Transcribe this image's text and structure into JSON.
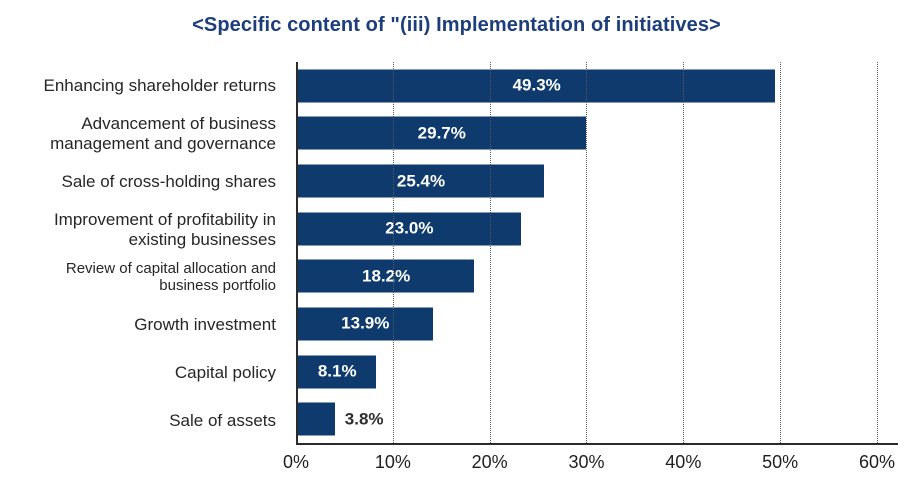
{
  "chart_data": {
    "type": "bar",
    "orientation": "horizontal",
    "title": "<Specific content of \"(iii) Implementation of initiatives>",
    "categories": [
      "Enhancing shareholder returns",
      "Advancement of business\nmanagement and governance",
      "Sale of cross-holding shares",
      "Improvement of profitability in\nexisting businesses",
      "Review of capital allocation and\nbusiness portfolio",
      "Growth investment",
      "Capital policy",
      "Sale of assets"
    ],
    "values": [
      49.3,
      29.7,
      25.4,
      23.0,
      18.2,
      13.9,
      8.1,
      3.8
    ],
    "value_labels": [
      "49.3%",
      "29.7%",
      "25.4%",
      "23.0%",
      "18.2%",
      "13.9%",
      "8.1%",
      "3.8%"
    ],
    "x_ticks": [
      "0%",
      "10%",
      "20%",
      "30%",
      "40%",
      "50%",
      "60%"
    ],
    "xlim": [
      0,
      60
    ],
    "grid": "vertical-dotted",
    "legend": "none",
    "colors": {
      "bar": "#0e3a6e",
      "title": "#1c3e7c",
      "value_label_inside": "#ffffff",
      "value_label_outside": "#2e2e2e",
      "axis_line": "#2b2b2b",
      "gridline": "#595959",
      "category_text": "#262626",
      "tick_text": "#1f1f1f"
    }
  }
}
